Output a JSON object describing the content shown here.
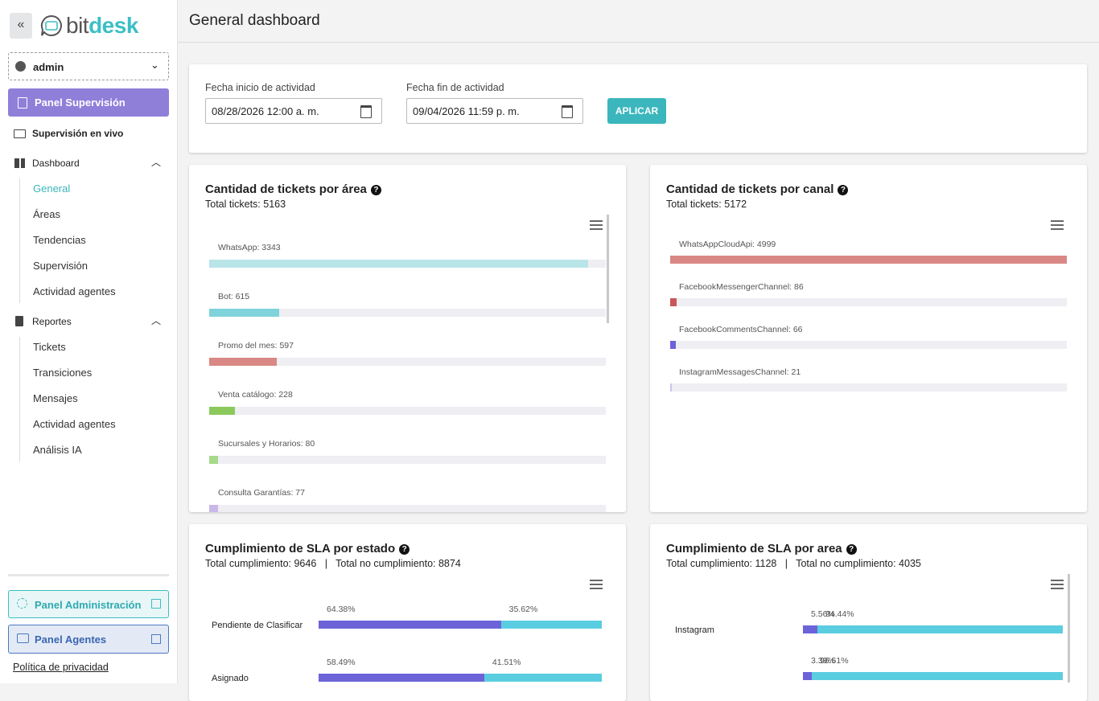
{
  "sidebar": {
    "brand": [
      "bit",
      "desk"
    ],
    "user": "admin",
    "supervision_button": "Panel Supervisión",
    "live": "Supervisión en vivo",
    "groups": [
      {
        "label": "Dashboard",
        "items": [
          "General",
          "Áreas",
          "Tendencias",
          "Supervisión",
          "Actividad agentes"
        ]
      },
      {
        "label": "Reportes",
        "items": [
          "Tickets",
          "Transiciones",
          "Mensajes",
          "Actividad agentes",
          "Análisis IA"
        ]
      }
    ],
    "admin_panel": "Panel Administración",
    "agents_panel": "Panel Agentes",
    "privacy": "Política de privacidad"
  },
  "header": {
    "title": "General dashboard"
  },
  "filters": {
    "start_label": "Fecha inicio de actividad",
    "start_value": "08/28/2026 12:00 a. m.",
    "end_label": "Fecha fin de actividad",
    "end_value": "09/04/2026 11:59 p. m.",
    "apply": "APLICAR"
  },
  "chart_data": [
    {
      "type": "bar",
      "title": "Cantidad de tickets por área",
      "subtitle": "Total tickets: 5163",
      "values": [
        3343,
        615,
        597,
        228,
        80,
        77
      ],
      "value_labels": [
        "WhatsApp: 3343",
        "Bot: 615",
        "Promo del mes: 597",
        "Venta catálogo: 228",
        "Sucursales y Horarios: 80",
        "Consulta Garantías: 77"
      ],
      "colors": [
        "#b9e4e8",
        "#7fd3da",
        "#d98885",
        "#8cc95d",
        "#a6d98a",
        "#c9b8e8"
      ],
      "xlim": [
        0,
        3500
      ]
    },
    {
      "type": "bar",
      "title": "Cantidad de tickets por canal",
      "subtitle": "Total tickets: 5172",
      "values": [
        4999,
        86,
        66,
        21
      ],
      "value_labels": [
        "WhatsAppCloudApi: 4999",
        "FacebookMessengerChannel: 86",
        "FacebookCommentsChannel: 66",
        "InstagramMessagesChannel: 21"
      ],
      "colors": [
        "#d98885",
        "#c9555a",
        "#6c63d9",
        "#c9c4ec"
      ],
      "xlim": [
        0,
        5000
      ]
    },
    {
      "type": "stacked_bar",
      "title": "Cumplimiento de SLA por estado",
      "subtitle": "Total cumplimiento: 9646   |   Total no cumplimiento: 8874",
      "categories": [
        "Pendiente de Clasificar",
        "Asignado"
      ],
      "series": [
        {
          "color": "#6c63d9",
          "values": [
            64.38,
            58.49
          ],
          "value_labels": [
            "64.38%",
            "58.49%"
          ]
        },
        {
          "color": "#5bcde0",
          "values": [
            35.62,
            41.51
          ],
          "value_labels": [
            "35.62%",
            "41.51%"
          ]
        }
      ],
      "xlim": [
        0,
        100
      ]
    },
    {
      "type": "stacked_bar",
      "title": "Cumplimiento de SLA por area",
      "subtitle": "Total cumplimiento: 1128   |   Total no cumplimiento: 4035",
      "categories": [
        "Instagram",
        null
      ],
      "series": [
        {
          "color": "#6c63d9",
          "values": [
            5.56,
            3.39
          ],
          "value_labels": [
            "5.56%",
            "3.39%"
          ]
        },
        {
          "color": "#5bcde0",
          "values": [
            94.44,
            96.61
          ],
          "value_labels": [
            "94.44%",
            "96.61%"
          ]
        }
      ],
      "xlim": [
        0,
        100
      ]
    }
  ]
}
